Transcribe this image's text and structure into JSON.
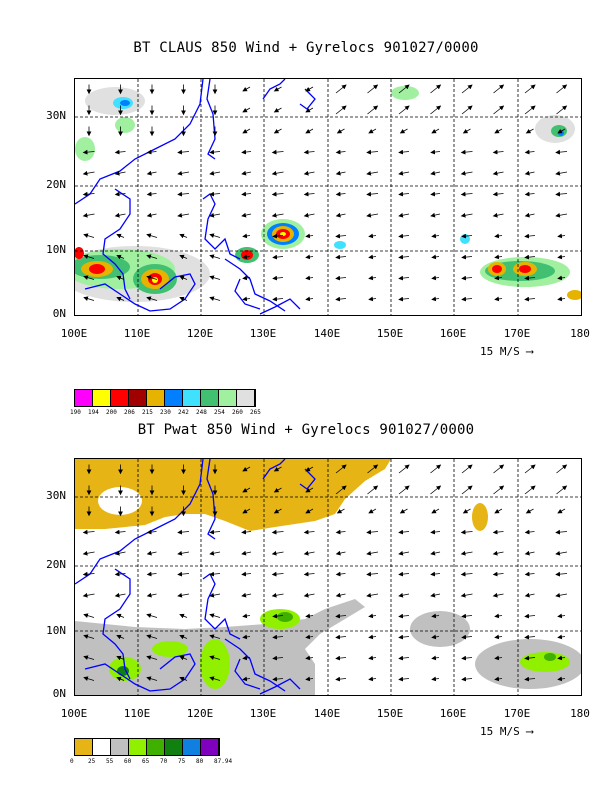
{
  "panel1": {
    "title": "BT CLAUS 850 Wind + Gyrelocs 901027/0000",
    "y_ticks": [
      "30N",
      "20N",
      "10N",
      "0N"
    ],
    "x_ticks": [
      "100E",
      "110E",
      "120E",
      "130E",
      "140E",
      "150E",
      "160E",
      "170E",
      "180"
    ],
    "wind_scale": "15 M/S",
    "colorbar": {
      "colors": [
        "#ff00ff",
        "#ffff00",
        "#ff0000",
        "#a00000",
        "#e6b400",
        "#0080ff",
        "#40e0ff",
        "#40c070",
        "#a0f0a0",
        "#e0e0e0"
      ],
      "labels": [
        "190",
        "194",
        "200",
        "206",
        "215",
        "230",
        "242",
        "248",
        "254",
        "260",
        "265"
      ]
    }
  },
  "panel2": {
    "title": "BT Pwat 850 Wind + Gyrelocs 901027/0000",
    "y_ticks": [
      "30N",
      "20N",
      "10N",
      "0N"
    ],
    "x_ticks": [
      "100E",
      "110E",
      "120E",
      "130E",
      "140E",
      "150E",
      "160E",
      "170E",
      "180"
    ],
    "wind_scale": "15 M/S",
    "colorbar": {
      "colors": [
        "#e6b414",
        "#ffffff",
        "#c0c0c0",
        "#90f000",
        "#40b000",
        "#108010",
        "#1080e0",
        "#8000c0"
      ],
      "labels": [
        "0",
        "25",
        "55",
        "60",
        "65",
        "70",
        "75",
        "80",
        "87.94"
      ]
    }
  },
  "colors": {
    "coastline": "#0000ff",
    "grid": "#000000"
  }
}
